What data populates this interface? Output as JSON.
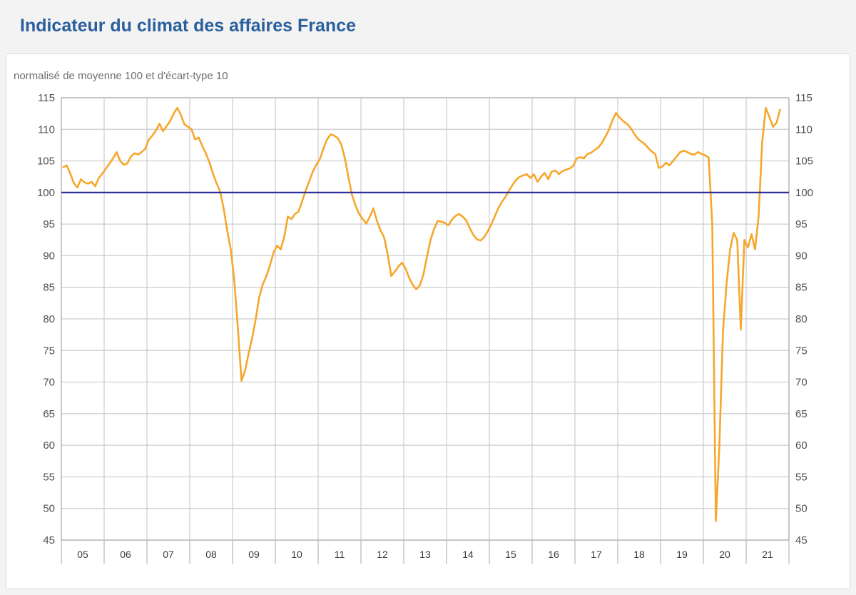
{
  "page": {
    "title": "Indicateur du climat des affaires France",
    "subtitle": "normalisé de moyenne 100 et d'écart-type 10"
  },
  "colors": {
    "title": "#2b5f9c",
    "subtitle": "#6e6e6e",
    "page_bg": "#f3f3f3",
    "panel_bg": "#ffffff",
    "panel_border": "#d9d9d9",
    "grid": "#cccccc",
    "axis": "#a3a3a3",
    "tick": "#b5b5b5",
    "y_label": "#4f4f4f",
    "x_label": "#3a3a3a",
    "reference_line": "#31319b",
    "series_line": "#f6a72b"
  },
  "chart_data": {
    "type": "line",
    "title": "Indicateur du climat des affaires France",
    "subtitle": "normalisé de moyenne 100 et d'écart-type 10",
    "frequency": "monthly",
    "x_start": "2005-01",
    "x_end": "2021-10",
    "x_tick_labels": [
      "05",
      "06",
      "07",
      "08",
      "09",
      "10",
      "11",
      "12",
      "13",
      "14",
      "15",
      "16",
      "17",
      "18",
      "19",
      "20",
      "21"
    ],
    "y_ticks": [
      115,
      110,
      105,
      100,
      95,
      90,
      85,
      80,
      75,
      70,
      65,
      60,
      55,
      50,
      45
    ],
    "ylim": [
      45,
      115
    ],
    "reference_value": 100,
    "grid": true,
    "legend": "none",
    "series": [
      {
        "name": "Indicateur du climat des affaires France (normalisé, moyenne 100, écart-type 10)",
        "color": "#f6a72b",
        "values": [
          104.0,
          104.3,
          103.0,
          101.5,
          100.8,
          102.1,
          101.6,
          101.4,
          101.7,
          101.0,
          102.3,
          103.0,
          103.8,
          104.6,
          105.4,
          106.4,
          105.0,
          104.4,
          104.6,
          105.7,
          106.2,
          106.0,
          106.4,
          106.9,
          108.3,
          109.0,
          109.8,
          110.9,
          109.7,
          110.5,
          111.3,
          112.5,
          113.4,
          112.3,
          110.8,
          110.4,
          110.0,
          108.4,
          108.7,
          107.4,
          106.2,
          104.8,
          103.0,
          101.5,
          100.2,
          97.5,
          94.0,
          91.0,
          86.0,
          78.5,
          70.2,
          71.8,
          74.5,
          77.0,
          80.0,
          83.5,
          85.5,
          86.8,
          88.5,
          90.5,
          91.6,
          91.0,
          93.0,
          96.2,
          95.8,
          96.6,
          97.0,
          98.6,
          100.3,
          101.8,
          103.3,
          104.4,
          105.3,
          107.0,
          108.4,
          109.2,
          109.0,
          108.6,
          107.6,
          105.4,
          102.4,
          99.6,
          97.9,
          96.6,
          95.8,
          95.1,
          96.2,
          97.5,
          95.5,
          94.0,
          92.9,
          90.2,
          86.8,
          87.5,
          88.3,
          88.9,
          88.0,
          86.5,
          85.4,
          84.7,
          85.3,
          87.0,
          89.8,
          92.5,
          94.2,
          95.5,
          95.4,
          95.2,
          94.8,
          95.7,
          96.3,
          96.6,
          96.2,
          95.6,
          94.4,
          93.3,
          92.6,
          92.4,
          92.9,
          93.8,
          94.9,
          96.2,
          97.5,
          98.5,
          99.3,
          100.3,
          101.2,
          102.0,
          102.5,
          102.7,
          102.9,
          102.3,
          102.9,
          101.7,
          102.5,
          103.1,
          102.1,
          103.3,
          103.5,
          102.9,
          103.4,
          103.6,
          103.8,
          104.2,
          105.4,
          105.6,
          105.4,
          106.1,
          106.3,
          106.7,
          107.1,
          107.8,
          108.8,
          109.9,
          111.4,
          112.6,
          111.9,
          111.3,
          110.9,
          110.3,
          109.4,
          108.6,
          108.1,
          107.7,
          107.1,
          106.5,
          106.1,
          103.9,
          104.1,
          104.7,
          104.3,
          105.0,
          105.7,
          106.4,
          106.6,
          106.4,
          106.1,
          106.0,
          106.4,
          106.1,
          105.9,
          105.5,
          95.0,
          48.0,
          60.0,
          78.0,
          85.5,
          91.0,
          93.6,
          92.5,
          78.3,
          92.5,
          91.3,
          93.4,
          91.0,
          96.3,
          108.0,
          113.4,
          112.0,
          110.4,
          111.0,
          113.1
        ]
      }
    ]
  }
}
